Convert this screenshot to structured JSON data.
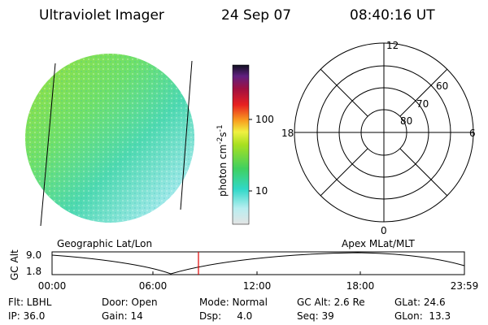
{
  "header": {
    "instrument": "Ultraviolet Imager",
    "date": "24 Sep 07",
    "time": "08:40:16 UT"
  },
  "colorbar": {
    "labels": [
      "100",
      "10"
    ],
    "units": {
      "base": "photon cm",
      "exp1": "-2",
      "mid": "s",
      "exp2": "-1"
    }
  },
  "polar": {
    "latitude_labels": [
      "60",
      "70",
      "80"
    ],
    "mlt_labels": [
      "12",
      "18",
      "6",
      "0"
    ]
  },
  "orbit": {
    "axis_label": "GC Alt",
    "y_labels": [
      "9.0",
      "1.8"
    ],
    "left_title": "Geographic Lat/Lon",
    "right_title": "Apex MLat/MLT",
    "x_labels": [
      "00:00",
      "06:00",
      "12:00",
      "18:00",
      "23:59"
    ]
  },
  "info": {
    "rows": [
      [
        "Flt: LBHL",
        "Door: Open",
        "Mode: Normal",
        "GC Alt: 2.6 Re",
        "GLat: 24.6"
      ],
      [
        "IP: 36.0",
        "Gain: 14",
        "Dsp:     4.0",
        "Seq: 39",
        "GLon:  13.3"
      ]
    ]
  }
}
